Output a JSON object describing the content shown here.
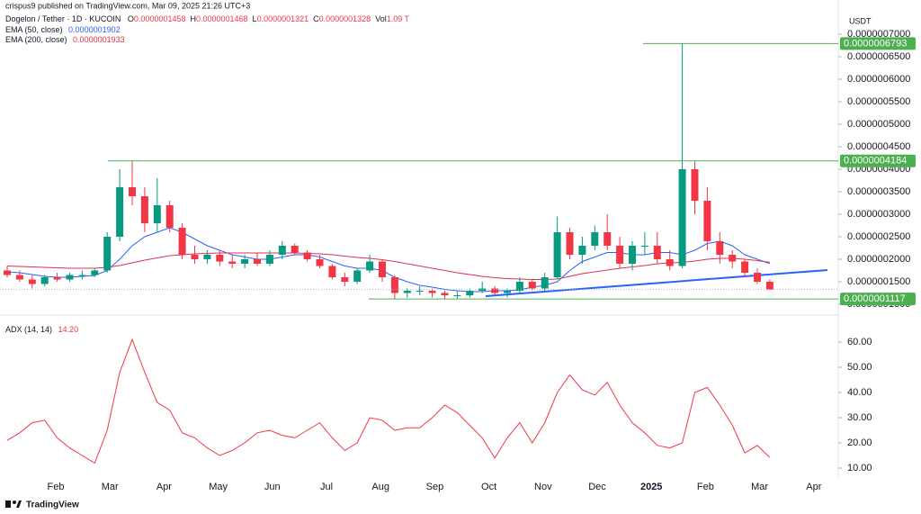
{
  "chart_data": [
    {
      "type": "candlestick",
      "attribution": "crispus9 published on TradingView.com, Mar 09, 2025 21:26 UTC+3",
      "title": "Dogelon / Tether · 1D · KUCOIN",
      "ohlc": [
        {
          "label": "O",
          "value": "0.0000001458"
        },
        {
          "label": "H",
          "value": "0.0000001468"
        },
        {
          "label": "L",
          "value": "0.0000001321"
        },
        {
          "label": "C",
          "value": "0.0000001328"
        },
        {
          "label": "Vol",
          "value": "1.09 T"
        }
      ],
      "currency": "USDT",
      "source": "TradingView",
      "up_color": "#089981",
      "down_color": "#f23645",
      "open": [
        1.75e-07,
        1.65e-07,
        1.55e-07,
        1.45e-07,
        1.6e-07,
        1.55e-07,
        1.65e-07,
        1.65e-07,
        1.75e-07,
        2.5e-07,
        3.6e-07,
        3.4e-07,
        2.8e-07,
        3.2e-07,
        2.7e-07,
        2.1e-07,
        2e-07,
        2.1e-07,
        1.95e-07,
        1.9e-07,
        2e-07,
        1.9e-07,
        2.1e-07,
        2.3e-07,
        2.15e-07,
        2e-07,
        1.85e-07,
        1.6e-07,
        1.5e-07,
        1.75e-07,
        1.95e-07,
        1.6e-07,
        1.25e-07,
        1.3e-07,
        1.3e-07,
        1.25e-07,
        1.2e-07,
        1.2e-07,
        1.3e-07,
        1.35e-07,
        1.25e-07,
        1.3e-07,
        1.5e-07,
        1.35e-07,
        1.6e-07,
        2.6e-07,
        2.1e-07,
        2.3e-07,
        2.6e-07,
        2.3e-07,
        1.9e-07,
        2.3e-07,
        2.3e-07,
        2e-07,
        1.85e-07,
        4e-07,
        3.3e-07,
        2.4e-07,
        2.1e-07,
        1.95e-07,
        1.7e-07,
        1.5e-07
      ],
      "high": [
        1.85e-07,
        1.75e-07,
        1.65e-07,
        1.65e-07,
        1.7e-07,
        1.7e-07,
        1.75e-07,
        1.8e-07,
        2.6e-07,
        4e-07,
        4.184e-07,
        3.6e-07,
        3.8e-07,
        3.3e-07,
        2.8e-07,
        2.3e-07,
        2.2e-07,
        2.2e-07,
        2.1e-07,
        2.1e-07,
        2.15e-07,
        2.2e-07,
        2.4e-07,
        2.35e-07,
        2.2e-07,
        2.1e-07,
        1.9e-07,
        1.7e-07,
        1.8e-07,
        2.1e-07,
        2e-07,
        1.65e-07,
        1.35e-07,
        1.4e-07,
        1.35e-07,
        1.3e-07,
        1.3e-07,
        1.35e-07,
        1.5e-07,
        1.4e-07,
        1.35e-07,
        1.6e-07,
        1.55e-07,
        1.7e-07,
        2.95e-07,
        2.7e-07,
        2.5e-07,
        2.75e-07,
        3e-07,
        2.5e-07,
        2.4e-07,
        2.6e-07,
        2.6e-07,
        2.2e-07,
        6.793e-07,
        4.18e-07,
        3.6e-07,
        2.6e-07,
        2.2e-07,
        2e-07,
        1.8e-07,
        1.55e-07
      ],
      "low": [
        1.6e-07,
        1.5e-07,
        1.35e-07,
        1.4e-07,
        1.5e-07,
        1.5e-07,
        1.55e-07,
        1.6e-07,
        1.7e-07,
        2.4e-07,
        3.2e-07,
        2.6e-07,
        2.6e-07,
        2.6e-07,
        2e-07,
        1.9e-07,
        1.9e-07,
        1.85e-07,
        1.8e-07,
        1.8e-07,
        1.85e-07,
        1.85e-07,
        2e-07,
        2.1e-07,
        1.95e-07,
        1.8e-07,
        1.55e-07,
        1.4e-07,
        1.45e-07,
        1.7e-07,
        1.5e-07,
        1.117e-07,
        1.15e-07,
        1.2e-07,
        1.15e-07,
        1.12e-07,
        1.12e-07,
        1.15e-07,
        1.25e-07,
        1.2e-07,
        1.15e-07,
        1.25e-07,
        1.3e-07,
        1.3e-07,
        1.55e-07,
        2e-07,
        1.9e-07,
        2.2e-07,
        2.2e-07,
        1.8e-07,
        1.75e-07,
        2.1e-07,
        1.9e-07,
        1.75e-07,
        1.8e-07,
        3e-07,
        2.2e-07,
        1.9e-07,
        1.8e-07,
        1.6e-07,
        1.45e-07,
        1.32e-07
      ],
      "close": [
        1.65e-07,
        1.55e-07,
        1.45e-07,
        1.6e-07,
        1.55e-07,
        1.65e-07,
        1.65e-07,
        1.75e-07,
        2.5e-07,
        3.6e-07,
        3.4e-07,
        2.8e-07,
        3.2e-07,
        2.7e-07,
        2.1e-07,
        2e-07,
        2.1e-07,
        1.95e-07,
        1.9e-07,
        2e-07,
        1.9e-07,
        2.1e-07,
        2.3e-07,
        2.15e-07,
        2e-07,
        1.85e-07,
        1.6e-07,
        1.5e-07,
        1.75e-07,
        1.95e-07,
        1.6e-07,
        1.25e-07,
        1.3e-07,
        1.3e-07,
        1.25e-07,
        1.2e-07,
        1.2e-07,
        1.3e-07,
        1.35e-07,
        1.25e-07,
        1.3e-07,
        1.5e-07,
        1.35e-07,
        1.6e-07,
        2.6e-07,
        2.1e-07,
        2.3e-07,
        2.6e-07,
        2.3e-07,
        1.9e-07,
        2.3e-07,
        2.3e-07,
        2e-07,
        1.85e-07,
        4e-07,
        3.3e-07,
        2.4e-07,
        2.1e-07,
        1.95e-07,
        1.7e-07,
        1.5e-07,
        1.328e-07
      ],
      "series": [
        {
          "name": "EMA (50, close)",
          "last_label": "0.0000001902",
          "color": "#2962ff",
          "values": [
            1.72e-07,
            1.7e-07,
            1.66e-07,
            1.62e-07,
            1.6e-07,
            1.6e-07,
            1.62e-07,
            1.64e-07,
            1.75e-07,
            2e-07,
            2.3e-07,
            2.5e-07,
            2.6e-07,
            2.7e-07,
            2.6e-07,
            2.45e-07,
            2.3e-07,
            2.2e-07,
            2.1e-07,
            2.05e-07,
            2e-07,
            2e-07,
            2.05e-07,
            2.1e-07,
            2.1e-07,
            2.05e-07,
            1.95e-07,
            1.85e-07,
            1.8e-07,
            1.8e-07,
            1.75e-07,
            1.6e-07,
            1.5e-07,
            1.42e-07,
            1.38e-07,
            1.33e-07,
            1.3e-07,
            1.28e-07,
            1.28e-07,
            1.3e-07,
            1.3e-07,
            1.32e-07,
            1.38e-07,
            1.42e-07,
            1.5e-07,
            1.75e-07,
            1.95e-07,
            2.05e-07,
            2.15e-07,
            2.15e-07,
            2.1e-07,
            2.1e-07,
            2.15e-07,
            2.15e-07,
            2.1e-07,
            2.2e-07,
            2.35e-07,
            2.4e-07,
            2.3e-07,
            2.1e-07,
            2e-07,
            1.902e-07
          ]
        },
        {
          "name": "EMA (200, close)",
          "last_label": "0.0000001933",
          "color": "#e0304e",
          "values": [
            1.85e-07,
            1.84e-07,
            1.83e-07,
            1.82e-07,
            1.81e-07,
            1.8e-07,
            1.8e-07,
            1.8e-07,
            1.82e-07,
            1.86e-07,
            1.92e-07,
            1.98e-07,
            2.03e-07,
            2.08e-07,
            2.1e-07,
            2.12e-07,
            2.13e-07,
            2.14e-07,
            2.14e-07,
            2.14e-07,
            2.14e-07,
            2.14e-07,
            2.14e-07,
            2.14e-07,
            2.13e-07,
            2.12e-07,
            2.1e-07,
            2.07e-07,
            2.04e-07,
            2.02e-07,
            1.99e-07,
            1.95e-07,
            1.9e-07,
            1.85e-07,
            1.8e-07,
            1.75e-07,
            1.7e-07,
            1.66e-07,
            1.62e-07,
            1.59e-07,
            1.57e-07,
            1.56e-07,
            1.55e-07,
            1.55e-07,
            1.56e-07,
            1.62e-07,
            1.68e-07,
            1.72e-07,
            1.76e-07,
            1.8e-07,
            1.83e-07,
            1.86e-07,
            1.9e-07,
            1.92e-07,
            1.93e-07,
            1.96e-07,
            2e-07,
            2.02e-07,
            2.02e-07,
            2e-07,
            1.97e-07,
            1.933e-07
          ]
        }
      ],
      "levels": [
        {
          "value": 6.793e-07,
          "label": "0.0000006793"
        },
        {
          "value": 4.184e-07,
          "label": "0.0000004184"
        },
        {
          "value": 1.117e-07,
          "label": "0.0000001117"
        }
      ],
      "level_color": "#4caf50",
      "ylim": [
        8.6e-08,
        7.56e-07
      ],
      "yticks": [
        {
          "value": 7e-07,
          "label": "0.0000007000"
        },
        {
          "value": 6.5e-07,
          "label": "0.0000006500"
        },
        {
          "value": 6e-07,
          "label": "0.0000006000"
        },
        {
          "value": 5.5e-07,
          "label": "0.0000005500"
        },
        {
          "value": 5e-07,
          "label": "0.0000005000"
        },
        {
          "value": 4.5e-07,
          "label": "0.0000004500"
        },
        {
          "value": 4e-07,
          "label": "0.0000004000"
        },
        {
          "value": 3.5e-07,
          "label": "0.0000003500"
        },
        {
          "value": 3e-07,
          "label": "0.0000003000"
        },
        {
          "value": 2.5e-07,
          "label": "0.0000002500"
        },
        {
          "value": 2e-07,
          "label": "0.0000002000"
        },
        {
          "value": 1.5e-07,
          "label": "0.0000001500"
        },
        {
          "value": 1e-07,
          "label": "0.0000001000"
        }
      ],
      "grid": false
    },
    {
      "type": "line",
      "series": [
        {
          "name": "ADX (14, 14)",
          "last_label": "14.20",
          "color": "#f23645",
          "values": [
            21,
            24,
            28,
            29,
            22,
            18,
            15,
            12,
            25,
            48,
            61,
            48,
            36,
            33,
            24,
            22,
            18,
            15,
            17,
            20,
            24,
            25,
            23,
            22,
            25,
            28,
            22,
            17,
            20,
            30,
            29,
            25,
            26,
            26,
            30,
            35,
            32,
            27,
            22,
            14,
            22,
            28,
            20,
            28,
            40,
            47,
            41,
            39,
            44,
            35,
            28,
            24,
            19,
            18,
            20,
            40,
            42,
            35,
            27,
            16,
            19,
            14.2
          ]
        }
      ],
      "ylim": [
        6.43,
        68.93
      ],
      "yticks": [
        {
          "value": 60,
          "label": "60.00"
        },
        {
          "value": 50,
          "label": "50.00"
        },
        {
          "value": 40,
          "label": "40.00"
        },
        {
          "value": 30,
          "label": "30.00"
        },
        {
          "value": 20,
          "label": "20.00"
        },
        {
          "value": 10,
          "label": "10.00"
        }
      ],
      "x_labels": [
        "Feb",
        "Mar",
        "Apr",
        "May",
        "Jun",
        "Jul",
        "Aug",
        "Sep",
        "Oct",
        "Nov",
        "Dec",
        "2025",
        "Feb",
        "Mar",
        "Apr"
      ],
      "grid": false
    }
  ]
}
